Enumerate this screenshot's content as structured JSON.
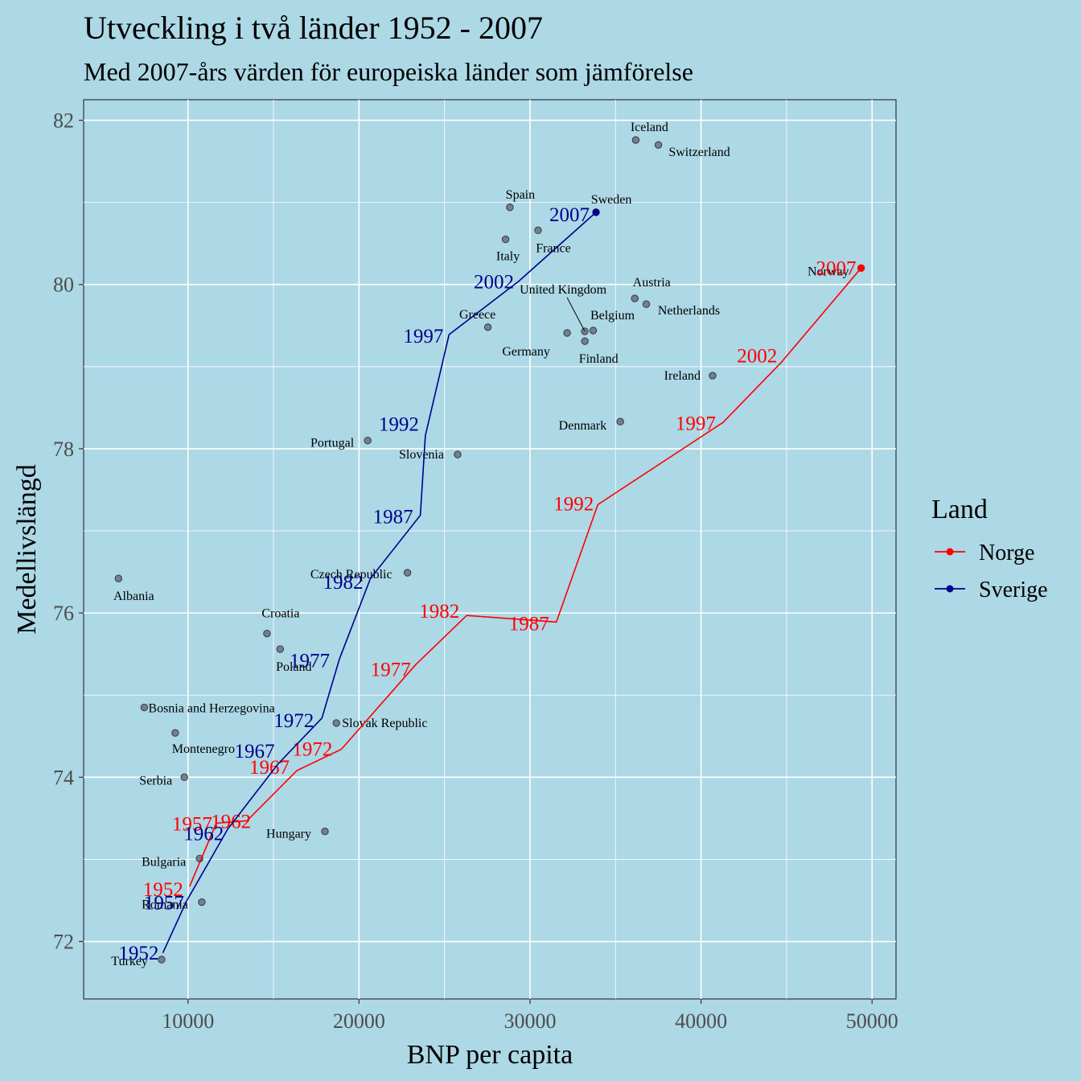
{
  "colors": {
    "Norge": "#ff0000",
    "Sverige": "#00008b",
    "background": "#add8e6",
    "grid": "#ffffff",
    "point": "#708090"
  },
  "chart_data": {
    "type": "scatter",
    "title": "Utveckling i två länder 1952 - 2007",
    "subtitle": "Med 2007-års värden för europeiska länder som jämförelse",
    "xlabel": "BNP per capita",
    "ylabel": "Medellivslängd",
    "xlim": [
      3900,
      51400
    ],
    "ylim": [
      71.3,
      82.25
    ],
    "x_ticks": [
      10000,
      20000,
      30000,
      40000,
      50000
    ],
    "y_ticks": [
      72,
      74,
      76,
      78,
      80,
      82
    ],
    "legend": {
      "title": "Land",
      "position": "right",
      "entries": [
        "Norge",
        "Sverige"
      ]
    },
    "countries": [
      {
        "name": "Albania",
        "x": 5937,
        "y": 76.42
      },
      {
        "name": "Austria",
        "x": 36126,
        "y": 79.83
      },
      {
        "name": "Belgium",
        "x": 33693,
        "y": 79.44
      },
      {
        "name": "Bosnia and Herzegovina",
        "x": 7446,
        "y": 74.85
      },
      {
        "name": "Bulgaria",
        "x": 10681,
        "y": 73.01
      },
      {
        "name": "Croatia",
        "x": 14619,
        "y": 75.75
      },
      {
        "name": "Czech Republic",
        "x": 22833,
        "y": 76.49
      },
      {
        "name": "Denmark",
        "x": 35278,
        "y": 78.33
      },
      {
        "name": "Finland",
        "x": 33207,
        "y": 79.31
      },
      {
        "name": "France",
        "x": 30470,
        "y": 80.66
      },
      {
        "name": "Germany",
        "x": 32170,
        "y": 79.41
      },
      {
        "name": "Greece",
        "x": 27538,
        "y": 79.48
      },
      {
        "name": "Hungary",
        "x": 18009,
        "y": 73.34
      },
      {
        "name": "Iceland",
        "x": 36181,
        "y": 81.76
      },
      {
        "name": "Ireland",
        "x": 40676,
        "y": 78.89
      },
      {
        "name": "Italy",
        "x": 28570,
        "y": 80.55
      },
      {
        "name": "Montenegro",
        "x": 9254,
        "y": 74.54
      },
      {
        "name": "Netherlands",
        "x": 36798,
        "y": 79.76
      },
      {
        "name": "Poland",
        "x": 15390,
        "y": 75.56
      },
      {
        "name": "Portugal",
        "x": 20510,
        "y": 78.1
      },
      {
        "name": "Romania",
        "x": 10808,
        "y": 72.48
      },
      {
        "name": "Serbia",
        "x": 9787,
        "y": 74.0
      },
      {
        "name": "Slovak Republic",
        "x": 18678,
        "y": 74.66
      },
      {
        "name": "Slovenia",
        "x": 25768,
        "y": 77.93
      },
      {
        "name": "Spain",
        "x": 28821,
        "y": 80.94
      },
      {
        "name": "Switzerland",
        "x": 37506,
        "y": 81.7
      },
      {
        "name": "Turkey",
        "x": 8458,
        "y": 71.78
      },
      {
        "name": "United Kingdom",
        "x": 33203,
        "y": 79.43
      },
      {
        "name": "Norway",
        "x": 49357,
        "y": 80.2
      },
      {
        "name": "Sweden",
        "x": 33860,
        "y": 80.88
      }
    ],
    "series": [
      {
        "name": "Norge",
        "years": [
          "1952",
          "1957",
          "1962",
          "1967",
          "1972",
          "1977",
          "1982",
          "1987",
          "1992",
          "1997",
          "2002",
          "2007"
        ],
        "x": [
          10095,
          11654,
          13450,
          16362,
          18965,
          23311,
          26298,
          31541,
          33966,
          41283,
          44684,
          49357
        ],
        "y": [
          72.67,
          73.44,
          73.47,
          74.08,
          74.34,
          75.37,
          75.97,
          75.89,
          77.32,
          78.32,
          79.05,
          80.2
        ]
      },
      {
        "name": "Sverige",
        "years": [
          "1952",
          "1957",
          "1962",
          "1967",
          "1972",
          "1977",
          "1982",
          "1987",
          "1992",
          "1997",
          "2002",
          "2007"
        ],
        "x": [
          8528,
          9912,
          12329,
          15259,
          17832,
          18856,
          20668,
          23587,
          23880,
          25267,
          29342,
          33860
        ],
        "y": [
          71.86,
          72.49,
          73.37,
          74.16,
          74.72,
          75.44,
          76.42,
          77.19,
          78.16,
          79.39,
          80.04,
          80.88
        ]
      }
    ]
  }
}
